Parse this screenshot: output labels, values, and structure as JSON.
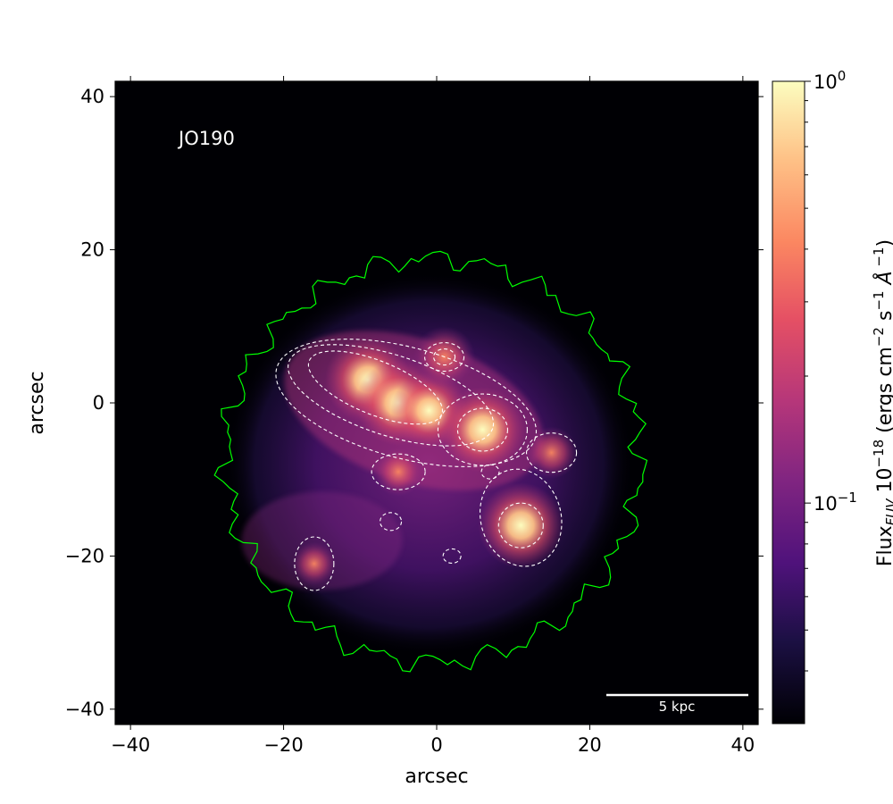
{
  "chart_data": {
    "type": "heatmap",
    "title": "",
    "label": "JO190",
    "xlabel": "arcsec",
    "ylabel": "arcsec",
    "xlim": [
      -42,
      42
    ],
    "ylim": [
      -42,
      42
    ],
    "x_ticks": [
      -40,
      -20,
      0,
      20,
      40
    ],
    "x_tick_labels": [
      "−40",
      "−20",
      "0",
      "20",
      "40"
    ],
    "y_ticks": [
      40,
      20,
      0,
      -20,
      -40
    ],
    "y_tick_labels": [
      "40",
      "20",
      "0",
      "−20",
      "−40"
    ],
    "colorbar": {
      "label_main": "Flux",
      "label_sub": "FUV",
      "label_rest": " 10",
      "label_exp": "−18",
      "label_units_a": " (ergs cm",
      "label_exp2": "−2",
      "label_units_b": " s",
      "label_exp3": "−1",
      "label_units_c": " Å",
      "label_exp4": " −1",
      "label_close": ")",
      "scale": "log",
      "range": [
        0.03,
        1.0
      ],
      "ticks": [
        {
          "value": 1.0,
          "base": "10",
          "exp": "0"
        },
        {
          "value": 0.1,
          "base": "10",
          "exp": "−1"
        }
      ],
      "colormap": "magma"
    },
    "scalebar": {
      "label": "5 kpc"
    },
    "colors": {
      "background": "#000004",
      "outline_contour": "#00ff00",
      "flux_contours": "#ffffff"
    },
    "sources": [
      {
        "name": "main-ridge-north",
        "x": -9,
        "y": 3,
        "flux": 1.0
      },
      {
        "name": "main-ridge",
        "x": -5,
        "y": 0,
        "flux": 1.0
      },
      {
        "name": "main-ridge-east",
        "x": -1,
        "y": -1,
        "flux": 0.85
      },
      {
        "name": "knot-center-right",
        "x": 6,
        "y": -3.5,
        "flux": 1.0
      },
      {
        "name": "knot-south-east",
        "x": 11,
        "y": -16,
        "flux": 1.0
      },
      {
        "name": "knot-top",
        "x": 1,
        "y": 6,
        "flux": 0.6
      },
      {
        "name": "knot-right",
        "x": 15,
        "y": -6.5,
        "flux": 0.45
      },
      {
        "name": "knot-south-center",
        "x": -5,
        "y": -9,
        "flux": 0.4
      },
      {
        "name": "knot-south-west",
        "x": -16,
        "y": -21,
        "flux": 0.3
      }
    ]
  }
}
